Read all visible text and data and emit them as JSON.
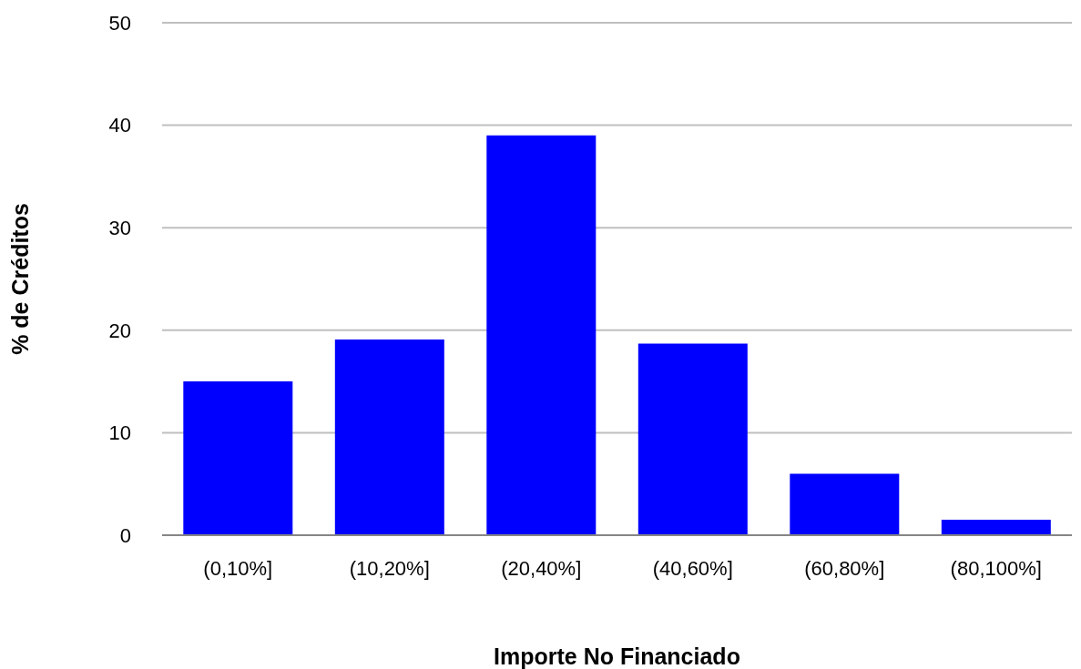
{
  "chart_data": {
    "type": "bar",
    "xlabel": "Importe No Financiado",
    "ylabel": "% de Créditos",
    "categories": [
      "(0,10%]",
      "(10,20%]",
      "(20,40%]",
      "(40,60%]",
      "(60,80%]",
      "(80,100%]"
    ],
    "values": [
      15,
      19.1,
      39,
      18.7,
      6,
      1.5
    ],
    "color": "#0000ff",
    "ylim": [
      0,
      50
    ],
    "yticks": [
      0,
      10,
      20,
      30,
      40,
      50
    ],
    "grid": "y"
  }
}
